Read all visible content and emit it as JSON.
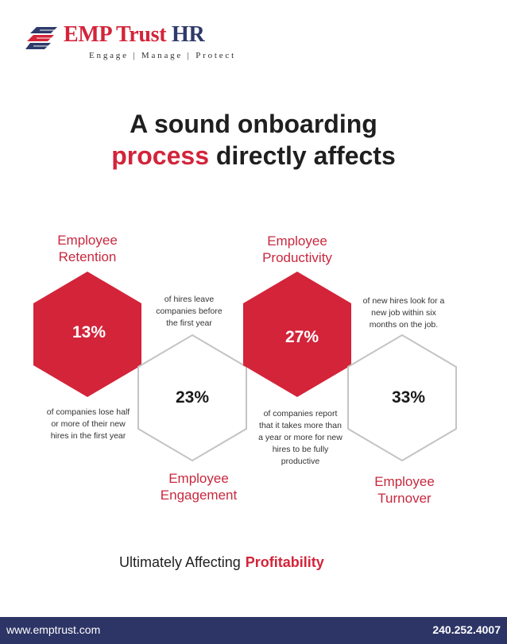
{
  "logo": {
    "brand_red": "EMP Trust",
    "brand_blue": "HR",
    "tagline": "Engage | Manage | Protect"
  },
  "heading": {
    "line1": "A sound onboarding",
    "line2_red": "process",
    "line2_rest": "directly affects"
  },
  "metrics": [
    {
      "category_line1": "Employee",
      "category_line2": "Retention",
      "stat": "13%",
      "description": [
        "of companies lose half",
        "or more of their new",
        "hires in the first year"
      ],
      "hex_fill": "red"
    },
    {
      "category_line1": "Employee",
      "category_line2": "Engagement",
      "stat": "23%",
      "description": [
        "of hires leave",
        "companies before",
        "the first year"
      ],
      "hex_fill": "outline"
    },
    {
      "category_line1": "Employee",
      "category_line2": "Productivity",
      "stat": "27%",
      "description": [
        "of companies report",
        "that it takes more than",
        "a year or more for new",
        "hires to be fully",
        "productive"
      ],
      "hex_fill": "red"
    },
    {
      "category_line1": "Employee",
      "category_line2": "Turnover",
      "stat": "33%",
      "description": [
        "of new hires look for a",
        "new job within six",
        "months on the job."
      ],
      "hex_fill": "outline"
    }
  ],
  "footer": {
    "lead": "Ultimately Affecting",
    "highlight": "Profitability",
    "website": "www.emptrust.com",
    "phone": "240.252.4007"
  },
  "colors": {
    "accent_red": "#d3243a",
    "navy": "#2d3566",
    "outline_gray": "#c4c4c4"
  }
}
